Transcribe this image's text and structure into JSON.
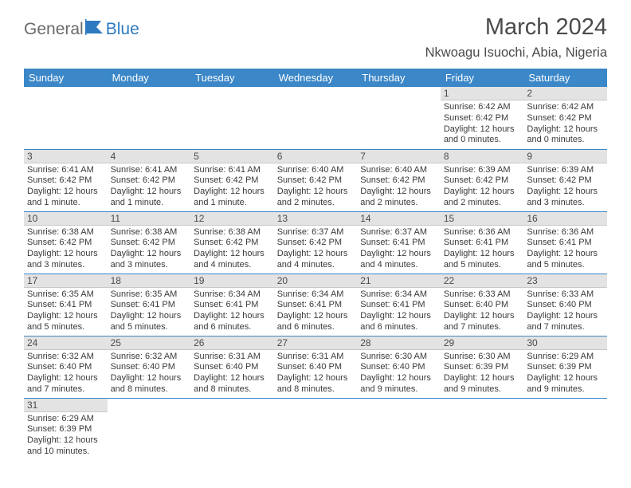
{
  "logo": {
    "text1": "General",
    "text2": "Blue"
  },
  "title": "March 2024",
  "location": "Nkwoagu Isuochi, Abia, Nigeria",
  "colors": {
    "header_bg": "#3b87c8",
    "header_text": "#ffffff",
    "daynum_bg": "#e3e3e3",
    "row_border": "#3b87c8",
    "text": "#3a3a3a",
    "title_text": "#4a4a4a",
    "logo_gray": "#6a6a6a",
    "logo_blue": "#2d7ac0"
  },
  "dayHeaders": [
    "Sunday",
    "Monday",
    "Tuesday",
    "Wednesday",
    "Thursday",
    "Friday",
    "Saturday"
  ],
  "weeks": [
    [
      null,
      null,
      null,
      null,
      null,
      {
        "n": "1",
        "sr": "6:42 AM",
        "ss": "6:42 PM",
        "dl": "12 hours and 0 minutes."
      },
      {
        "n": "2",
        "sr": "6:42 AM",
        "ss": "6:42 PM",
        "dl": "12 hours and 0 minutes."
      }
    ],
    [
      {
        "n": "3",
        "sr": "6:41 AM",
        "ss": "6:42 PM",
        "dl": "12 hours and 1 minute."
      },
      {
        "n": "4",
        "sr": "6:41 AM",
        "ss": "6:42 PM",
        "dl": "12 hours and 1 minute."
      },
      {
        "n": "5",
        "sr": "6:41 AM",
        "ss": "6:42 PM",
        "dl": "12 hours and 1 minute."
      },
      {
        "n": "6",
        "sr": "6:40 AM",
        "ss": "6:42 PM",
        "dl": "12 hours and 2 minutes."
      },
      {
        "n": "7",
        "sr": "6:40 AM",
        "ss": "6:42 PM",
        "dl": "12 hours and 2 minutes."
      },
      {
        "n": "8",
        "sr": "6:39 AM",
        "ss": "6:42 PM",
        "dl": "12 hours and 2 minutes."
      },
      {
        "n": "9",
        "sr": "6:39 AM",
        "ss": "6:42 PM",
        "dl": "12 hours and 3 minutes."
      }
    ],
    [
      {
        "n": "10",
        "sr": "6:38 AM",
        "ss": "6:42 PM",
        "dl": "12 hours and 3 minutes."
      },
      {
        "n": "11",
        "sr": "6:38 AM",
        "ss": "6:42 PM",
        "dl": "12 hours and 3 minutes."
      },
      {
        "n": "12",
        "sr": "6:38 AM",
        "ss": "6:42 PM",
        "dl": "12 hours and 4 minutes."
      },
      {
        "n": "13",
        "sr": "6:37 AM",
        "ss": "6:42 PM",
        "dl": "12 hours and 4 minutes."
      },
      {
        "n": "14",
        "sr": "6:37 AM",
        "ss": "6:41 PM",
        "dl": "12 hours and 4 minutes."
      },
      {
        "n": "15",
        "sr": "6:36 AM",
        "ss": "6:41 PM",
        "dl": "12 hours and 5 minutes."
      },
      {
        "n": "16",
        "sr": "6:36 AM",
        "ss": "6:41 PM",
        "dl": "12 hours and 5 minutes."
      }
    ],
    [
      {
        "n": "17",
        "sr": "6:35 AM",
        "ss": "6:41 PM",
        "dl": "12 hours and 5 minutes."
      },
      {
        "n": "18",
        "sr": "6:35 AM",
        "ss": "6:41 PM",
        "dl": "12 hours and 5 minutes."
      },
      {
        "n": "19",
        "sr": "6:34 AM",
        "ss": "6:41 PM",
        "dl": "12 hours and 6 minutes."
      },
      {
        "n": "20",
        "sr": "6:34 AM",
        "ss": "6:41 PM",
        "dl": "12 hours and 6 minutes."
      },
      {
        "n": "21",
        "sr": "6:34 AM",
        "ss": "6:41 PM",
        "dl": "12 hours and 6 minutes."
      },
      {
        "n": "22",
        "sr": "6:33 AM",
        "ss": "6:40 PM",
        "dl": "12 hours and 7 minutes."
      },
      {
        "n": "23",
        "sr": "6:33 AM",
        "ss": "6:40 PM",
        "dl": "12 hours and 7 minutes."
      }
    ],
    [
      {
        "n": "24",
        "sr": "6:32 AM",
        "ss": "6:40 PM",
        "dl": "12 hours and 7 minutes."
      },
      {
        "n": "25",
        "sr": "6:32 AM",
        "ss": "6:40 PM",
        "dl": "12 hours and 8 minutes."
      },
      {
        "n": "26",
        "sr": "6:31 AM",
        "ss": "6:40 PM",
        "dl": "12 hours and 8 minutes."
      },
      {
        "n": "27",
        "sr": "6:31 AM",
        "ss": "6:40 PM",
        "dl": "12 hours and 8 minutes."
      },
      {
        "n": "28",
        "sr": "6:30 AM",
        "ss": "6:40 PM",
        "dl": "12 hours and 9 minutes."
      },
      {
        "n": "29",
        "sr": "6:30 AM",
        "ss": "6:39 PM",
        "dl": "12 hours and 9 minutes."
      },
      {
        "n": "30",
        "sr": "6:29 AM",
        "ss": "6:39 PM",
        "dl": "12 hours and 9 minutes."
      }
    ],
    [
      {
        "n": "31",
        "sr": "6:29 AM",
        "ss": "6:39 PM",
        "dl": "12 hours and 10 minutes."
      },
      null,
      null,
      null,
      null,
      null,
      null
    ]
  ],
  "labels": {
    "sunrise": "Sunrise: ",
    "sunset": "Sunset: ",
    "daylight": "Daylight: "
  }
}
